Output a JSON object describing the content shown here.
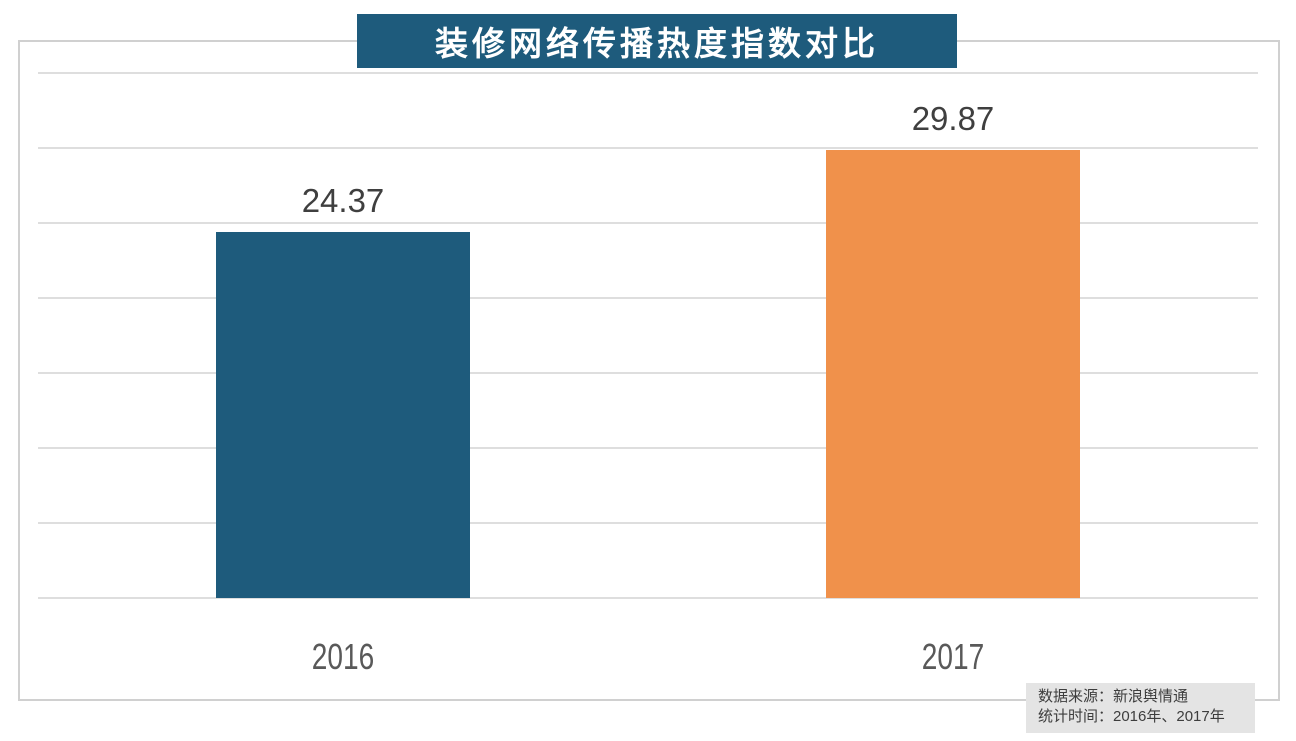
{
  "title_banner": {
    "text": "装修网络传播热度指数对比",
    "bg_color": "#1e5b7c",
    "text_color": "#ffffff"
  },
  "chart_data": {
    "type": "bar",
    "title": "装修网络传播热度指数对比",
    "categories": [
      "2016",
      "2017"
    ],
    "values": [
      24.37,
      29.87
    ],
    "value_labels": [
      "24.37",
      "29.87"
    ],
    "bar_colors": [
      "#1e5b7c",
      "#f0914b"
    ],
    "ylim": [
      0,
      35
    ],
    "grid_step": 5,
    "gridlines": "horizontal",
    "y_ticks_shown": false,
    "xlabel": "",
    "ylabel": "",
    "legend": "none",
    "annotations": [
      "数据来源：新浪舆情通",
      "统计时间：2016年、2017年"
    ]
  },
  "footer_note": {
    "bg_color": "#e4e4e4"
  }
}
